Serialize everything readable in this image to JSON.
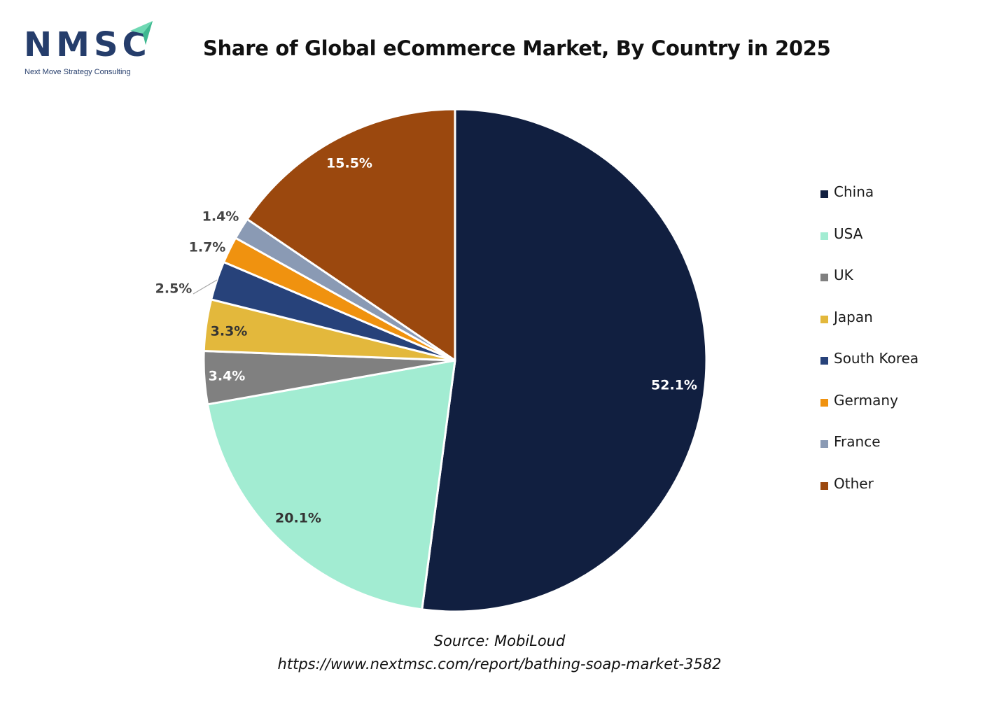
{
  "logo": {
    "text": "NMSC",
    "subtitle": "Next Move Strategy Consulting",
    "icon": "arrow-icon",
    "color": "#253d6b",
    "accent": "#6fd8b3"
  },
  "title": "Share of Global eCommerce Market, By Country in 2025",
  "chart_data": {
    "type": "pie",
    "title": "Share of Global eCommerce Market, By Country in 2025",
    "start_angle_deg": 0,
    "direction": "clockwise",
    "legend_position": "right",
    "slices": [
      {
        "label": "China",
        "value": 52.1,
        "value_label": "52.1%",
        "color": "#111f40"
      },
      {
        "label": "USA",
        "value": 20.1,
        "value_label": "20.1%",
        "color": "#a2ecd2"
      },
      {
        "label": "UK",
        "value": 3.4,
        "value_label": "3.4%",
        "color": "#808080"
      },
      {
        "label": "Japan",
        "value": 3.3,
        "value_label": "3.3%",
        "color": "#e3b83c"
      },
      {
        "label": "South Korea",
        "value": 2.5,
        "value_label": "2.5%",
        "color": "#27427a"
      },
      {
        "label": "Germany",
        "value": 1.7,
        "value_label": "1.7%",
        "color": "#f0920f"
      },
      {
        "label": "France",
        "value": 1.4,
        "value_label": "1.4%",
        "color": "#8a9ab4"
      },
      {
        "label": "Other",
        "value": 15.5,
        "value_label": "15.5%",
        "color": "#9b480e"
      }
    ]
  },
  "source": {
    "line1": "Source: MobiLoud",
    "line2": "https://www.nextmsc.com/report/bathing-soap-market-3582"
  }
}
